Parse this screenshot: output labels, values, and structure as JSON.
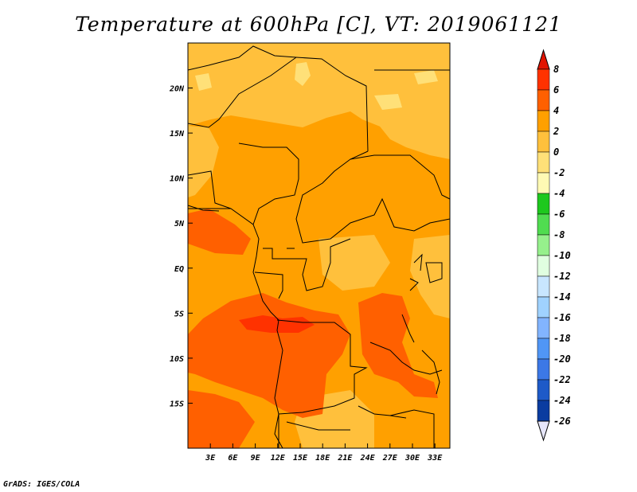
{
  "title": "Temperature at 600hPa [C], VT: 2019061121",
  "credit": "GrADS: IGES/COLA",
  "map": {
    "lon_range": [
      0,
      35
    ],
    "lat_range": [
      -20,
      25
    ],
    "x_ticks": [
      {
        "value": 3,
        "label": "3E"
      },
      {
        "value": 6,
        "label": "6E"
      },
      {
        "value": 9,
        "label": "9E"
      },
      {
        "value": 12,
        "label": "12E"
      },
      {
        "value": 15,
        "label": "15E"
      },
      {
        "value": 18,
        "label": "18E"
      },
      {
        "value": 21,
        "label": "21E"
      },
      {
        "value": 24,
        "label": "24E"
      },
      {
        "value": 27,
        "label": "27E"
      },
      {
        "value": 30,
        "label": "30E"
      },
      {
        "value": 33,
        "label": "33E"
      }
    ],
    "y_ticks": [
      {
        "value": 20,
        "label": "20N"
      },
      {
        "value": 15,
        "label": "15N"
      },
      {
        "value": 10,
        "label": "10N"
      },
      {
        "value": 5,
        "label": "5N"
      },
      {
        "value": 0,
        "label": "EQ"
      },
      {
        "value": -5,
        "label": "5S"
      },
      {
        "value": -10,
        "label": "10S"
      },
      {
        "value": -15,
        "label": "15S"
      }
    ],
    "colors": {
      "t2_4": "#ffa000",
      "t0_2": "#ffc03c",
      "tm2_0": "#ffe078",
      "t4_6": "#ff6000",
      "t6_8": "#ff3200"
    }
  },
  "colorbar": {
    "labels": [
      "8",
      "6",
      "4",
      "2",
      "0",
      "-2",
      "-4",
      "-6",
      "-8",
      "-10",
      "-12",
      "-14",
      "-16",
      "-18",
      "-20",
      "-22",
      "-24",
      "-26"
    ],
    "colors": [
      "#ff3200",
      "#ff6000",
      "#ffa000",
      "#ffc03c",
      "#ffe078",
      "#fffab4",
      "#1ec81e",
      "#50dc50",
      "#96f08c",
      "#e0ffe0",
      "#c8e6ff",
      "#a0d2ff",
      "#82b4ff",
      "#5096f5",
      "#3c78e6",
      "#1e5ac8",
      "#0a3ca0"
    ],
    "over_color": "#e11400",
    "under_color": "#e6e6fa"
  }
}
